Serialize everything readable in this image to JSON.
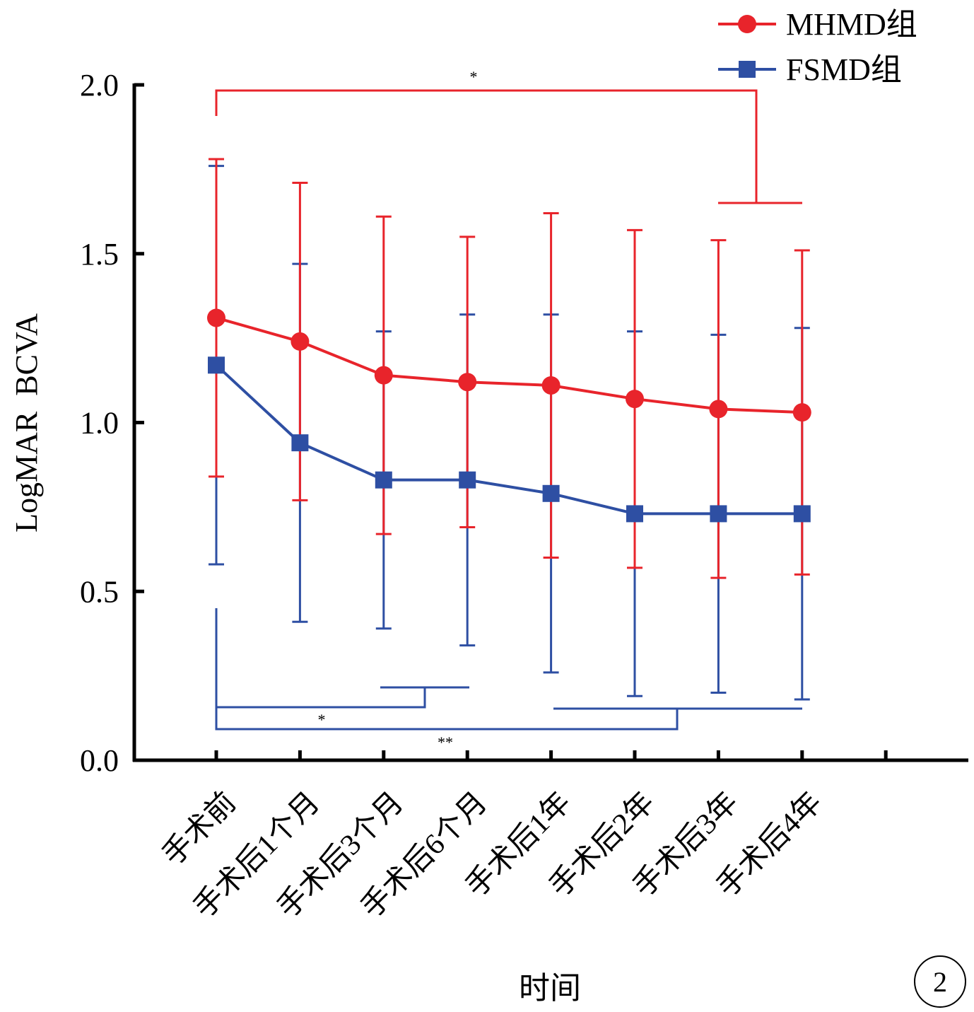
{
  "chart_data": {
    "type": "line",
    "title": "",
    "xlabel": "时间",
    "ylabel": "LogMAR  BCVA",
    "ylim": [
      0,
      2.0
    ],
    "yticks": [
      "0.0",
      "0.5",
      "1.0",
      "1.5",
      "2.0"
    ],
    "categories": [
      "手术前",
      "手术后1个月",
      "手术后3个月",
      "手术后6个月",
      "手术后1年",
      "手术后2年",
      "手术后3年",
      "手术后4年"
    ],
    "series": [
      {
        "name": "MHMD组",
        "color": "#e8242b",
        "marker": "circle",
        "values": [
          1.31,
          1.24,
          1.14,
          1.12,
          1.11,
          1.07,
          1.04,
          1.03
        ],
        "err_low": [
          0.84,
          0.77,
          0.67,
          0.69,
          0.6,
          0.57,
          0.54,
          0.55
        ],
        "err_high": [
          1.78,
          1.71,
          1.61,
          1.55,
          1.62,
          1.57,
          1.54,
          1.51
        ]
      },
      {
        "name": "FSMD组",
        "color": "#2e4fa3",
        "marker": "square",
        "values": [
          1.17,
          0.94,
          0.83,
          0.83,
          0.79,
          0.73,
          0.73,
          0.73
        ],
        "err_low": [
          0.58,
          0.41,
          0.39,
          0.34,
          0.26,
          0.19,
          0.2,
          0.18
        ],
        "err_high": [
          1.76,
          1.47,
          1.27,
          1.32,
          1.32,
          1.27,
          1.26,
          1.28
        ]
      }
    ],
    "legend": "top-right",
    "grid": false,
    "annotations": [
      {
        "text": "*",
        "series": "MHMD组",
        "note": "bracket 手术前 vs 手术后3年–手术后4年"
      },
      {
        "text": "*",
        "series": "FSMD组",
        "note": "bracket 手术前 vs 手术后3个月–手术后6个月"
      },
      {
        "text": "**",
        "series": "FSMD组",
        "note": "bracket 手术前 vs 手术后1年–手术后4年"
      }
    ],
    "figure_label": "2"
  }
}
